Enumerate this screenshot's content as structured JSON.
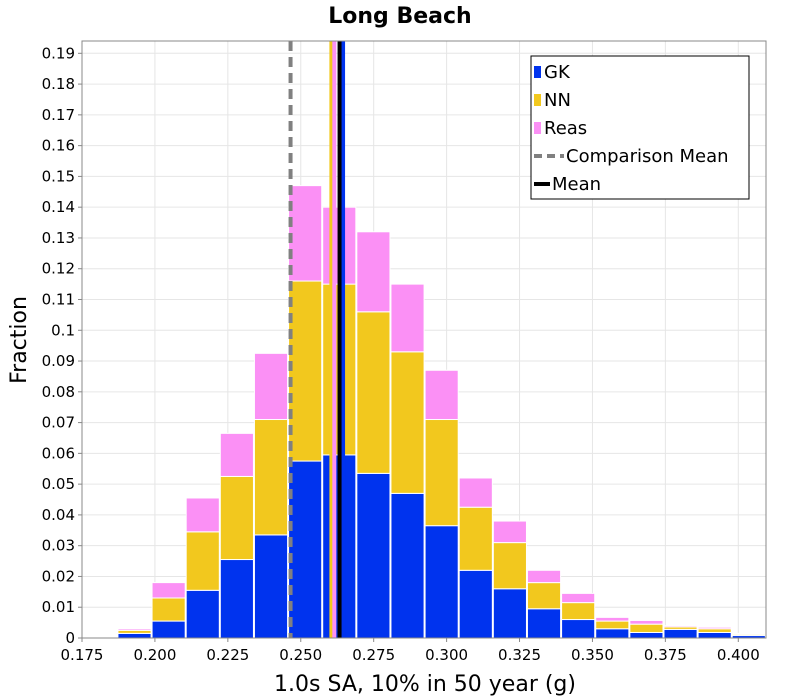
{
  "chart_data": {
    "type": "bar",
    "stacked": true,
    "title": "Long Beach",
    "xlabel": "1.0s SA, 10% in 50 year (g)",
    "ylabel": "Fraction",
    "xlim": [
      0.175,
      0.4095
    ],
    "ylim": [
      0,
      0.194
    ],
    "xticks": [
      "0.175",
      "0.200",
      "0.225",
      "0.250",
      "0.275",
      "0.300",
      "0.325",
      "0.350",
      "0.375",
      "0.400"
    ],
    "yticks": [
      "0",
      "0.01",
      "0.02",
      "0.03",
      "0.04",
      "0.05",
      "0.06",
      "0.07",
      "0.08",
      "0.09",
      "0.1",
      "0.11",
      "0.12",
      "0.13",
      "0.14",
      "0.15",
      "0.16",
      "0.17",
      "0.18",
      "0.19"
    ],
    "grid": true,
    "legend_position": "top-right",
    "bin_width": 0.0117,
    "bin_centers": [
      0.1813,
      0.193,
      0.2047,
      0.2164,
      0.2281,
      0.2398,
      0.2515,
      0.2632,
      0.2749,
      0.2866,
      0.2983,
      0.31,
      0.3217,
      0.3334,
      0.3451,
      0.3568,
      0.3685,
      0.3802,
      0.3919,
      0.4036
    ],
    "series": [
      {
        "name": "GK",
        "color": "#0033ee",
        "values": [
          0.0003,
          0.0015,
          0.0055,
          0.0155,
          0.0255,
          0.0335,
          0.0575,
          0.0595,
          0.0535,
          0.047,
          0.0365,
          0.022,
          0.016,
          0.0095,
          0.006,
          0.003,
          0.0018,
          0.0028,
          0.0018,
          0.0008
        ]
      },
      {
        "name": "NN",
        "color": "#f2c81e",
        "values": [
          0.0002,
          0.001,
          0.0075,
          0.019,
          0.027,
          0.0375,
          0.0585,
          0.0555,
          0.0525,
          0.046,
          0.0345,
          0.0205,
          0.015,
          0.0085,
          0.0055,
          0.0025,
          0.0027,
          0.0008,
          0.0012,
          0.0004
        ]
      },
      {
        "name": "Reas",
        "color": "#fb90f5",
        "values": [
          0.0001,
          0.0005,
          0.005,
          0.011,
          0.014,
          0.0215,
          0.031,
          0.025,
          0.026,
          0.022,
          0.016,
          0.0095,
          0.007,
          0.004,
          0.003,
          0.0012,
          0.0012,
          0.0004,
          0.0005,
          0.0003
        ]
      }
    ],
    "lines": [
      {
        "name": "Comparison Mean",
        "x": 0.2465,
        "style": "dashed",
        "color": "#808080"
      },
      {
        "name": "Mean",
        "x": 0.2633,
        "style": "solid",
        "color": "#000000"
      }
    ],
    "extra_markers": [
      {
        "x": 0.2605,
        "color": "#f2c81e"
      },
      {
        "x": 0.2615,
        "color": "#fb90f5"
      },
      {
        "x": 0.2645,
        "color": "#0033ee"
      }
    ]
  }
}
